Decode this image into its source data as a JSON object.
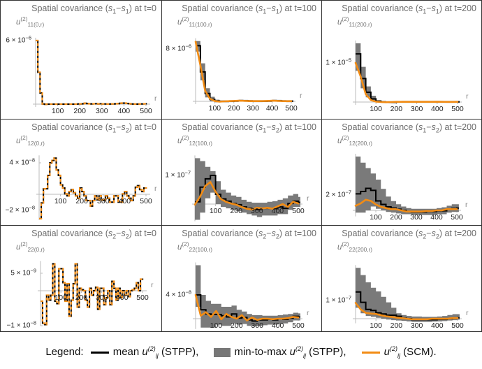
{
  "colors": {
    "mean": "#000000",
    "band": "#7a7a7a",
    "scm": "#f28c14",
    "axis": "#bbbbbb"
  },
  "legend": {
    "prefix": "Legend:",
    "mean_label": "mean",
    "u": "u",
    "sup": "(2)",
    "sub": "ij",
    "stpp1": "(STPP),",
    "minmax_label": "min-to-max",
    "stpp2": "(STPP),",
    "scm": "(SCM)."
  },
  "chart_data": [
    {
      "type": "line",
      "title": {
        "pre": "Spatial covariance (",
        "a": "s",
        "as": "1",
        "dash": "−",
        "b": "s",
        "bs": "1",
        "post": ") at t=0"
      },
      "ylabel": {
        "u": "u",
        "sup": "(2)",
        "sub": "11",
        "arg": "(0,r)"
      },
      "xlabel": "r",
      "xticks": [
        "100",
        "200",
        "300",
        "400",
        "500"
      ],
      "yticks": [
        {
          "value": 6,
          "m": "6 × 10",
          "e": "−6"
        }
      ],
      "y_unit": "1e-6",
      "x_start": 0,
      "x_step": 10,
      "stpp_equals_scm": true,
      "mean": [
        6,
        3.0,
        1.05,
        0.02,
        -0.02,
        0,
        0,
        0,
        0,
        0,
        0,
        0,
        0,
        0,
        0,
        0,
        0,
        0,
        0,
        0.02,
        0.02,
        0.03,
        0.08,
        0.05,
        0.03,
        0.02,
        0.03,
        0.04,
        0.02,
        0.03,
        0.02,
        0.02,
        0.01,
        0.01,
        0.02,
        0.02,
        0.03,
        0.04,
        0.08,
        0.1,
        0.1,
        0.07,
        0.04,
        0.02,
        0.01,
        0,
        0.01,
        0.02,
        0.02,
        0.03,
        0.03
      ]
    },
    {
      "type": "line",
      "title": {
        "pre": "Spatial covariance (",
        "a": "s",
        "as": "1",
        "dash": "−",
        "b": "s",
        "bs": "1",
        "post": ") at t=100"
      },
      "ylabel": {
        "u": "u",
        "sup": "(2)",
        "sub": "11",
        "arg": "(100,r)"
      },
      "xlabel": "r",
      "xticks": [
        "100",
        "200",
        "300",
        "400",
        "500"
      ],
      "yticks": [
        {
          "value": 8,
          "m": "8 × 10",
          "e": "−6"
        }
      ],
      "y_unit": "1e-6",
      "x_start": 0,
      "x_step": 25,
      "mean": [
        8.5,
        4.5,
        1.2,
        0.3,
        0.05,
        0,
        0,
        0.02,
        0.05,
        0.1,
        0.08,
        0.05,
        0.03,
        0.02,
        0.03,
        0.05,
        0.1,
        0.08,
        0.04,
        0.02,
        0.03
      ],
      "scm": [
        9.1,
        5.5,
        1.6,
        0.4,
        0.05,
        -0.05,
        0,
        0.03,
        0.06,
        0.1,
        0.08,
        0.05,
        0.03,
        0.03,
        0.04,
        0.06,
        0.1,
        0.07,
        0.04,
        0.02,
        0.03
      ],
      "min": [
        7.6,
        3.2,
        0.6,
        0,
        -0.15,
        -0.15,
        -0.15,
        -0.12,
        -0.1,
        -0.05,
        -0.07,
        -0.1,
        -0.12,
        -0.12,
        -0.1,
        -0.1,
        -0.05,
        -0.07,
        -0.1,
        -0.12,
        -0.12
      ],
      "max": [
        9.2,
        5.8,
        2.0,
        0.7,
        0.25,
        0.15,
        0.15,
        0.17,
        0.2,
        0.25,
        0.23,
        0.2,
        0.18,
        0.17,
        0.18,
        0.2,
        0.25,
        0.23,
        0.19,
        0.17,
        0.18
      ]
    },
    {
      "type": "line",
      "title": {
        "pre": "Spatial covariance (",
        "a": "s",
        "as": "1",
        "dash": "−",
        "b": "s",
        "bs": "1",
        "post": ") at t=200"
      },
      "ylabel": {
        "u": "u",
        "sup": "(2)",
        "sub": "11",
        "arg": "(200,r)"
      },
      "xlabel": "r",
      "xticks": [
        "100",
        "200",
        "300",
        "400",
        "500"
      ],
      "yticks": [
        {
          "value": 10,
          "m": "1 × 10",
          "e": "−5"
        }
      ],
      "y_unit": "1e-6",
      "x_start": 0,
      "x_step": 25,
      "mean": [
        12.3,
        6,
        2.5,
        0.8,
        0.2,
        0,
        -0.1,
        -0.1,
        0,
        0.05,
        0.05,
        0.05,
        0.05,
        0.03,
        0.03,
        0.05,
        0.05,
        0.05,
        0.03,
        0.03,
        0.05
      ],
      "scm": [
        10,
        6.5,
        2,
        0.5,
        0.1,
        0,
        -0.05,
        0,
        0.05,
        0.05,
        0.05,
        0.05,
        0.05,
        0.05,
        0.05,
        0.05,
        0.08,
        0.05,
        0.03,
        0.03,
        0.05
      ],
      "min": [
        8,
        3.5,
        1.2,
        0.2,
        -0.1,
        -0.2,
        -0.25,
        -0.25,
        -0.2,
        -0.2,
        -0.2,
        -0.2,
        -0.2,
        -0.2,
        -0.2,
        -0.2,
        -0.2,
        -0.2,
        -0.2,
        -0.2,
        -0.2
      ],
      "max": [
        15,
        9,
        4,
        1.6,
        0.5,
        0.3,
        0.2,
        0.2,
        0.25,
        0.3,
        0.3,
        0.3,
        0.3,
        0.28,
        0.28,
        0.3,
        0.3,
        0.3,
        0.28,
        0.28,
        0.3
      ]
    },
    {
      "type": "line",
      "title": {
        "pre": "Spatial covariance (",
        "a": "s",
        "as": "1",
        "dash": "−",
        "b": "s",
        "bs": "2",
        "post": ") at t=0"
      },
      "ylabel": {
        "u": "u",
        "sup": "(2)",
        "sub": "12",
        "arg": "(0,r)"
      },
      "xlabel": "r",
      "xticks": [
        "100",
        "200",
        "300",
        "400",
        "500"
      ],
      "yticks": [
        {
          "value": 4,
          "m": "4 × 10",
          "e": "−8"
        },
        {
          "value": -2,
          "m": "−2 × 10",
          "e": "−8"
        }
      ],
      "y_unit": "1e-8",
      "x_start": 0,
      "x_step": 10,
      "stpp_equals_scm": true,
      "mean": [
        -3.1,
        -1.1,
        0.7,
        0.7,
        2.4,
        4.0,
        4.3,
        4.6,
        3.1,
        2.4,
        1.2,
        0.8,
        0.06,
        -0.2,
        0.35,
        0.6,
        0.2,
        -0.2,
        -0.5,
        0.8,
        0.35,
        -0.2,
        -0.8,
        -0.8,
        -1.5,
        -0.8,
        -0.2,
        -0.7,
        -0.2,
        -0.7,
        -0.8,
        -0.2,
        -0.5,
        -1.0,
        -1.0,
        -0.2,
        -0.2,
        -1.0,
        -1.0,
        0.06,
        0.35,
        -0.2,
        -0.5,
        -0.8,
        -0.2,
        0.9,
        1.1,
        0.6,
        0.35,
        0.8,
        0.8
      ]
    },
    {
      "type": "line",
      "title": {
        "pre": "Spatial covariance (",
        "a": "s",
        "as": "1",
        "dash": "−",
        "b": "s",
        "bs": "2",
        "post": ") at t=100"
      },
      "ylabel": {
        "u": "u",
        "sup": "(2)",
        "sub": "12",
        "arg": "(100,r)"
      },
      "xlabel": "r",
      "xticks": [
        "100",
        "200",
        "300",
        "400",
        "500"
      ],
      "yticks": [
        {
          "value": 10,
          "m": "1 × 10",
          "e": "−7"
        }
      ],
      "y_unit": "1e-8",
      "x_start": 0,
      "x_step": 25,
      "mean": [
        0.8,
        5.9,
        8.8,
        10,
        3.4,
        1.8,
        1,
        0.2,
        -0.2,
        -1,
        -1.5,
        -1.9,
        -1.9,
        -1.5,
        -1.5,
        -1.6,
        -1,
        -1.5,
        0.2,
        1,
        0.6
      ],
      "scm": [
        -0.2,
        2.6,
        6.3,
        7.7,
        4.3,
        1.8,
        0.8,
        0.2,
        -0.2,
        -1,
        -1.6,
        -1.9,
        -1.3,
        -1.5,
        -1.3,
        -1.6,
        -0.8,
        0,
        -1,
        0.8,
        0.2
      ],
      "min": [
        -5.5,
        -3,
        2,
        4,
        0,
        -1,
        -1.5,
        -2,
        -2.5,
        -3,
        -3.5,
        -4,
        -4.5,
        -4,
        -4,
        -4,
        -3.5,
        -3.5,
        -2,
        -1,
        -1
      ],
      "max": [
        16,
        15,
        13,
        11.5,
        8,
        5,
        4,
        3,
        2.5,
        1.5,
        0.8,
        0.5,
        0.5,
        0.5,
        0.8,
        1,
        1.5,
        2,
        3,
        3.5,
        2.5
      ]
    },
    {
      "type": "line",
      "title": {
        "pre": "Spatial covariance (",
        "a": "s",
        "as": "1",
        "dash": "−",
        "b": "s",
        "bs": "2",
        "post": ") at t=200"
      },
      "ylabel": {
        "u": "u",
        "sup": "(2)",
        "sub": "12",
        "arg": "(200,r)"
      },
      "xlabel": "r",
      "xticks": [
        "100",
        "200",
        "300",
        "400",
        "500"
      ],
      "yticks": [
        {
          "value": 20,
          "m": "2 × 10",
          "e": "−7"
        }
      ],
      "y_unit": "1e-8",
      "x_start": 0,
      "x_step": 25,
      "mean": [
        21.5,
        24.6,
        28.6,
        26,
        12.3,
        7.7,
        4.6,
        3,
        1.5,
        0,
        -1.5,
        -2.2,
        -2.2,
        -2.2,
        -1.5,
        -1.5,
        -0.6,
        -0.6,
        1.5,
        2.5,
        3
      ],
      "scm": [
        6,
        9,
        13.8,
        12.3,
        7.7,
        4.6,
        3,
        1.5,
        1.5,
        0,
        -1.5,
        -1.5,
        -1.5,
        -1.5,
        -0.9,
        -0.9,
        0,
        0,
        1.5,
        1.5,
        1.5
      ],
      "min": [
        -3,
        -3,
        0,
        5,
        2,
        0,
        -2,
        -3,
        -4,
        -5,
        -5,
        -6,
        -6,
        -6,
        -6,
        -6,
        -5,
        -5,
        -3,
        -2,
        -2
      ],
      "max": [
        70,
        62,
        55,
        48,
        40,
        28,
        18,
        12,
        8,
        5,
        3,
        2,
        2,
        2,
        2,
        2,
        3,
        4,
        6,
        8,
        8
      ]
    },
    {
      "type": "line",
      "title": {
        "pre": "Spatial covariance (",
        "a": "s",
        "as": "2",
        "dash": "−",
        "b": "s",
        "bs": "2",
        "post": ") at t=0"
      },
      "ylabel": {
        "u": "u",
        "sup": "(2)",
        "sub": "22",
        "arg": "(0,r)"
      },
      "xlabel": "r",
      "xticks": [
        "100",
        "200",
        "300",
        "400",
        "500"
      ],
      "yticks": [
        {
          "value": 5,
          "m": "5 × 10",
          "e": "−9"
        },
        {
          "value": -10,
          "m": "−1 × 10",
          "e": "−8"
        }
      ],
      "y_unit": "1e-9",
      "x_start": 0,
      "x_step": 10,
      "stpp_equals_scm": true,
      "mean": [
        -3,
        -9.3,
        -9.7,
        -1.3,
        -2.7,
        -1.3,
        7.7,
        -3,
        -3.7,
        6.3,
        6.3,
        2.3,
        -3,
        2,
        -7.3,
        -2.7,
        2,
        7.7,
        -4.7,
        0.7,
        0.3,
        0,
        -2.7,
        -4.7,
        0.7,
        -1.3,
        0,
        1,
        -5.3,
        0.7,
        0.7,
        -4,
        -2,
        0,
        -4,
        2.7,
        0.7,
        -2.7,
        0.7,
        -2,
        0,
        -1.3,
        0,
        -1.7,
        0,
        0.3,
        0.7,
        2.3,
        0,
        3.3,
        3.3
      ]
    },
    {
      "type": "line",
      "title": {
        "pre": "Spatial covariance (",
        "a": "s",
        "as": "2",
        "dash": "−",
        "b": "s",
        "bs": "2",
        "post": ") at t=100"
      },
      "ylabel": {
        "u": "u",
        "sup": "(2)",
        "sub": "22",
        "arg": "(100,r)"
      },
      "xlabel": "r",
      "xticks": [
        "100",
        "200",
        "300",
        "400",
        "500"
      ],
      "yticks": [
        {
          "value": 4,
          "m": "4 × 10",
          "e": "−8"
        }
      ],
      "y_unit": "1e-8",
      "x_start": 0,
      "x_step": 25,
      "mean": [
        4,
        1.5,
        0.8,
        0.7,
        0.7,
        0.5,
        0.3,
        0.8,
        0.1,
        0.2,
        -0.2,
        -0.4,
        -0.2,
        -0.2,
        -0.1,
        -0.2,
        0,
        -0.1,
        0.1,
        0.4,
        0.3
      ],
      "scm": [
        4,
        0.5,
        1.1,
        0.3,
        1.3,
        -0.1,
        0.8,
        0.3,
        0,
        0.6,
        -0.3,
        0.2,
        -0.2,
        0,
        0,
        -0.1,
        0,
        0,
        0.1,
        0.3,
        0.2
      ],
      "min": [
        2,
        -1.5,
        -1.5,
        -1.5,
        -1,
        -1.2,
        -1.2,
        -0.8,
        -1,
        -0.9,
        -1.2,
        -1.3,
        -1.2,
        -1.1,
        -1,
        -1,
        -0.9,
        -0.8,
        -0.6,
        -0.3,
        -0.3
      ],
      "max": [
        9,
        4,
        3,
        2.5,
        2.5,
        2,
        2,
        2.2,
        1.5,
        1.2,
        0.8,
        0.6,
        0.6,
        0.5,
        0.5,
        0.5,
        0.6,
        0.7,
        0.8,
        1,
        0.9
      ]
    },
    {
      "type": "line",
      "title": {
        "pre": "Spatial covariance (",
        "a": "s",
        "as": "2",
        "dash": "−",
        "b": "s",
        "bs": "2",
        "post": ") at t=200"
      },
      "ylabel": {
        "u": "u",
        "sup": "(2)",
        "sub": "22",
        "arg": "(200,r)"
      },
      "xlabel": "r",
      "xticks": [
        "100",
        "200",
        "300",
        "400",
        "500"
      ],
      "yticks": [
        {
          "value": 10,
          "m": "1 × 10",
          "e": "−7"
        }
      ],
      "y_unit": "1e-8",
      "x_start": 0,
      "x_step": 25,
      "mean": [
        14.7,
        9,
        5.1,
        4.5,
        3.2,
        2.6,
        1.9,
        1.9,
        1.3,
        0.3,
        0,
        -0.6,
        -0.6,
        -0.6,
        -0.6,
        -0.6,
        -0.3,
        -0.3,
        0,
        0.3,
        0.5
      ],
      "scm": [
        8.7,
        5.1,
        3.2,
        2.8,
        2.6,
        1.9,
        1.3,
        1,
        0.6,
        0.3,
        0,
        -0.3,
        -0.3,
        -0.3,
        -0.3,
        0,
        0,
        0,
        0,
        0.3,
        0.3
      ],
      "min": [
        6,
        3,
        1.5,
        1,
        0.5,
        0,
        -0.5,
        -0.8,
        -1,
        -1.2,
        -1.5,
        -1.8,
        -1.8,
        -1.8,
        -1.8,
        -1.6,
        -1.5,
        -1.3,
        -1,
        -0.8,
        -0.6
      ],
      "max": [
        28,
        24,
        20,
        17,
        15,
        12,
        9,
        6,
        3,
        2,
        1.5,
        1.2,
        1.2,
        1,
        1,
        1,
        1.2,
        1.5,
        2,
        2.5,
        2.5
      ]
    }
  ]
}
